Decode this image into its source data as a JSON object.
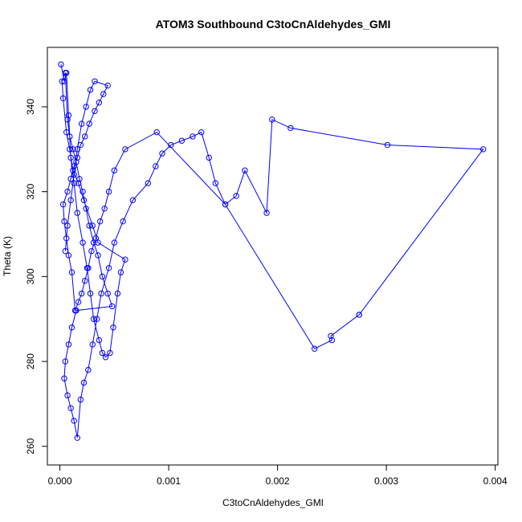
{
  "chart_data": {
    "type": "scatter",
    "title": "ATOM3 Southbound C3toCnAldehydes_GMI",
    "xlabel": "C3toCnAldehydes_GMI",
    "ylabel": "Theta (K)",
    "xlim": [
      -0.000115,
      0.004025
    ],
    "ylim": [
      255.6,
      354.0
    ],
    "x_ticks": [
      0.0,
      0.001,
      0.002,
      0.003,
      0.004
    ],
    "x_tick_labels": [
      "0.000",
      "0.001",
      "0.002",
      "0.003",
      "0.004"
    ],
    "y_ticks": [
      260,
      280,
      300,
      320,
      340
    ],
    "y_tick_labels": [
      "260",
      "280",
      "300",
      "320",
      "340"
    ],
    "grid": false,
    "legend": "none",
    "color": "#0000ff",
    "connected": true,
    "series": [
      {
        "x": [
          1e-05,
          4e-05,
          6e-05,
          8e-05,
          0.0001,
          0.00013,
          0.00016,
          0.00021,
          0.00025,
          0.00028,
          0.00031,
          0.00036,
          0.00039,
          0.00042,
          0.00046,
          0.00049,
          0.00053,
          0.00056,
          0.0006,
          0.00035,
          0.0003,
          0.00022,
          0.00017,
          0.00012,
          9e-05,
          6e-05,
          3e-05,
          2e-05,
          5e-05,
          7e-05,
          9e-05,
          0.00012,
          0.00015,
          0.00018,
          0.00021,
          0.00024,
          0.00027,
          0.00031,
          0.00035,
          0.00039,
          0.00044,
          0.00048,
          0.00015,
          0.00011,
          8e-05,
          5e-05,
          4e-05,
          7e-05,
          0.0001,
          0.00013,
          0.00016,
          0.00019,
          0.00022,
          0.00026,
          0.0003,
          0.00034,
          0.00038,
          0.00045,
          0.0005,
          0.00058,
          0.00067,
          0.00081,
          0.00088,
          0.00094,
          0.00102,
          0.00112,
          0.00122,
          0.0013,
          0.00137,
          0.00143,
          0.00152,
          0.00162,
          0.0017,
          0.0019,
          0.00195,
          0.00212,
          0.00301,
          0.00389,
          0.00275,
          0.00275,
          0.00249,
          0.0025,
          0.00234,
          0.00152,
          0.00089,
          0.0006,
          0.0005,
          0.00045,
          0.00041,
          0.00037,
          0.00033,
          0.00029,
          0.00026,
          0.00023,
          0.0002,
          0.00017,
          0.00014,
          0.00011,
          8e-05,
          6e-05,
          4e-05,
          3e-05,
          7e-05,
          0.0001,
          0.00013,
          0.00016,
          0.00019,
          0.00023,
          0.00027,
          0.00032,
          0.00036,
          0.0004,
          0.00044,
          0.00032,
          0.00028,
          0.00024,
          0.0002,
          0.00016,
          0.00013,
          0.0001,
          7e-05,
          5e-05
        ],
        "y": [
          350,
          346,
          348,
          338,
          328,
          322,
          315,
          308,
          302,
          296,
          290,
          285,
          282,
          281,
          282,
          288,
          296,
          301,
          304,
          308,
          312,
          318,
          322,
          325,
          330,
          334,
          342,
          346,
          348,
          337,
          333,
          330,
          327,
          323,
          320,
          316,
          312,
          308,
          305,
          300,
          296,
          293,
          292,
          288,
          284,
          280,
          276,
          272,
          269,
          266,
          262,
          271,
          275,
          278,
          284,
          290,
          296,
          302,
          308,
          313,
          318,
          322,
          326,
          329,
          331,
          332,
          333,
          334,
          328,
          322,
          317,
          319,
          325,
          315,
          337,
          335,
          331,
          330,
          291,
          291,
          286,
          285,
          283,
          317,
          334,
          330,
          325,
          320,
          316,
          313,
          309,
          306,
          302,
          299,
          296,
          294,
          292,
          301,
          305,
          309,
          313,
          317,
          320,
          323,
          326,
          328,
          331,
          333,
          336,
          339,
          341,
          343,
          345,
          346,
          344,
          340,
          336,
          330,
          324,
          318,
          312,
          306
        ]
      }
    ]
  }
}
